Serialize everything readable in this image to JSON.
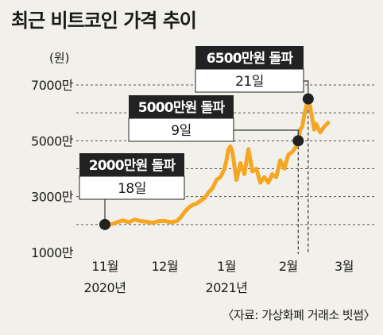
{
  "chart_data": {
    "type": "line",
    "title": "최근 비트코인 가격 추이",
    "unit_label": "(원)",
    "source": "〈자료: 가상화폐 거래소 빗썸〉",
    "y_ticks": [
      "7000만",
      "5000만",
      "3000만",
      "1000만"
    ],
    "y_tick_values": [
      7000,
      5000,
      3000,
      1000
    ],
    "ylim": [
      1000,
      7500
    ],
    "x_ticks": [
      {
        "label": "11월",
        "sublabel": "2020년",
        "day": 0
      },
      {
        "label": "12월",
        "sublabel": "",
        "day": 30
      },
      {
        "label": "1월",
        "sublabel": "2021년",
        "day": 61
      },
      {
        "label": "2월",
        "sublabel": "",
        "day": 92
      },
      {
        "label": "3월",
        "sublabel": "",
        "day": 120
      }
    ],
    "series": [
      {
        "color": "#f5a623",
        "x": [
          0,
          3,
          6,
          9,
          12,
          15,
          18,
          21,
          24,
          27,
          30,
          33,
          36,
          38,
          40,
          42,
          44,
          46,
          48,
          50,
          52,
          54,
          56,
          58,
          60,
          61,
          62,
          63,
          64,
          66,
          68,
          70,
          72,
          74,
          76,
          78,
          80,
          82,
          84,
          86,
          88,
          90,
          92,
          94,
          95,
          96,
          97,
          98,
          99,
          100,
          101,
          102,
          103,
          104,
          105,
          106,
          108,
          110,
          112
        ],
        "y": [
          2000,
          2000,
          2080,
          2150,
          2080,
          2180,
          2120,
          2100,
          2060,
          2120,
          2130,
          2080,
          2120,
          2250,
          2450,
          2600,
          2700,
          2750,
          2850,
          2950,
          3150,
          3300,
          3600,
          3700,
          4000,
          4300,
          4700,
          4800,
          4600,
          3600,
          4200,
          3800,
          4700,
          3900,
          4000,
          3500,
          3700,
          3500,
          3800,
          3700,
          4300,
          4000,
          4500,
          4600,
          4700,
          4800,
          5000,
          5400,
          5500,
          5900,
          6200,
          6500,
          6200,
          5800,
          5400,
          5600,
          5300,
          5500,
          5650
        ]
      }
    ],
    "annotations": [
      {
        "label": "2000만원 돌파",
        "value": "18일",
        "day": 0,
        "price": 2000
      },
      {
        "label": "5000만원 돌파",
        "value": "9일",
        "day": 97,
        "price": 5000
      },
      {
        "label": "6500만원 돌파",
        "value": "21일",
        "day": 102,
        "price": 6500
      }
    ],
    "colors": {
      "line": "#f5a623",
      "label_bg": "#222222",
      "marker": "#222222",
      "background": "#f2f0eb"
    },
    "grid": "dashed horizontal"
  }
}
